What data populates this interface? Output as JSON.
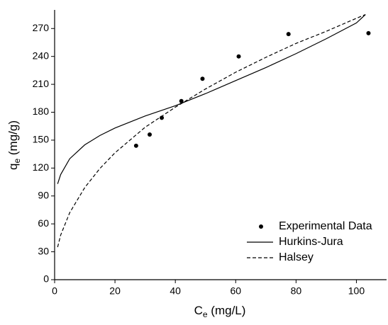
{
  "chart_data": {
    "type": "scatter",
    "x_label": {
      "main": "C",
      "sub": "e",
      "unit": " (mg/L)"
    },
    "y_label": {
      "main": "q",
      "sub": "e",
      "unit": " (mg/g)"
    },
    "xlim": [
      0,
      110
    ],
    "ylim": [
      0,
      290
    ],
    "xticks": [
      0,
      20,
      40,
      60,
      80,
      100
    ],
    "yticks": [
      0,
      30,
      60,
      90,
      120,
      150,
      180,
      210,
      240,
      270
    ],
    "legend": "lower right",
    "series": [
      {
        "name": "Experimental Data",
        "type": "scatter",
        "color": "#000000",
        "x": [
          27,
          31.5,
          35.5,
          42,
          49,
          61,
          77.5,
          104
        ],
        "values": [
          144,
          156,
          174,
          192,
          216,
          240,
          264,
          265
        ]
      },
      {
        "name": "Hurkins-Jura",
        "type": "line",
        "dash": false,
        "color": "#000000",
        "x": [
          1,
          2,
          5,
          10,
          15,
          20,
          30,
          40,
          50,
          60,
          70,
          80,
          90,
          100,
          103
        ],
        "values": [
          103,
          113,
          130,
          145,
          155,
          163,
          176,
          187,
          200,
          214,
          228,
          243,
          259,
          276,
          285
        ]
      },
      {
        "name": "Halsey",
        "type": "line",
        "dash": true,
        "color": "#000000",
        "x": [
          1,
          2,
          5,
          10,
          15,
          20,
          30,
          40,
          50,
          60,
          70,
          80,
          90,
          100,
          103
        ],
        "values": [
          35,
          47.9,
          72,
          99.1,
          119.5,
          136.4,
          163.9,
          185.4,
          205,
          223,
          239,
          254,
          267,
          281,
          285
        ]
      }
    ]
  }
}
